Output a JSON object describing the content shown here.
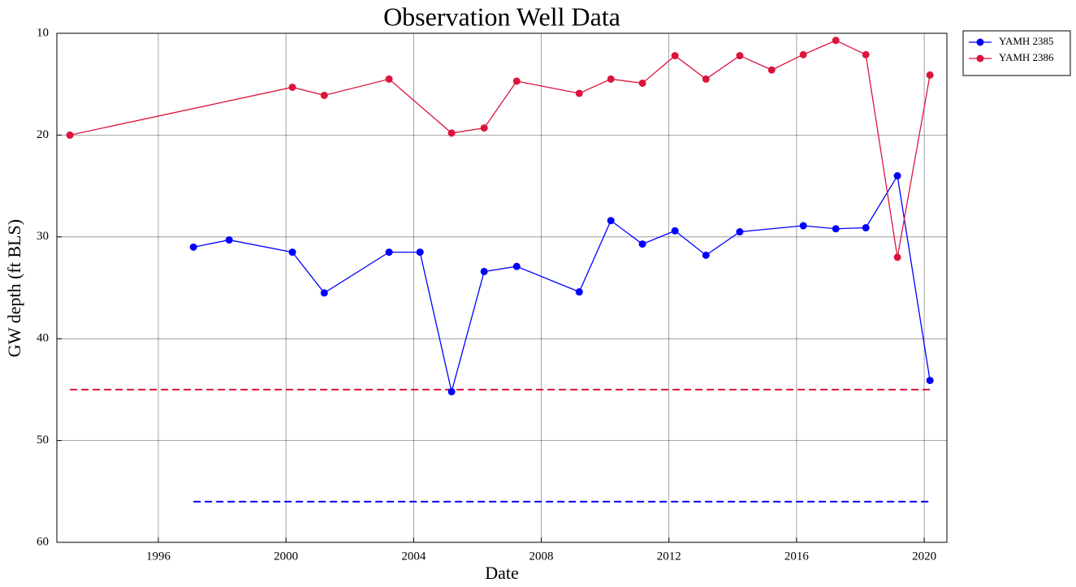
{
  "chart_data": {
    "type": "line",
    "title": "Observation Well Data",
    "x_label": "Date",
    "y_label": "GW depth (ft BLS)",
    "series": [
      {
        "name": "YAMH 2385",
        "color": "#0000ff",
        "x": [
          1997.1,
          1998.22,
          2000.2,
          2001.2,
          2003.23,
          2004.2,
          2005.19,
          2006.21,
          2007.23,
          2009.19,
          2010.18,
          2011.17,
          2012.19,
          2013.16,
          2014.22,
          2016.21,
          2017.23,
          2018.17,
          2019.16,
          2020.18
        ],
        "values": [
          31.0,
          30.3,
          31.5,
          35.5,
          31.5,
          31.5,
          45.2,
          33.4,
          32.9,
          35.4,
          28.4,
          30.7,
          29.4,
          31.8,
          29.5,
          28.9,
          29.2,
          29.1,
          24.0,
          44.1
        ]
      },
      {
        "name": "YAMH 2386",
        "color": "#dc143c",
        "x": [
          1993.23,
          2000.2,
          2001.2,
          2003.23,
          2005.19,
          2006.21,
          2007.23,
          2009.19,
          2010.18,
          2011.17,
          2012.19,
          2013.16,
          2014.22,
          2015.22,
          2016.21,
          2017.23,
          2018.17,
          2019.16,
          2020.18
        ],
        "values": [
          20.0,
          15.3,
          16.1,
          14.5,
          19.8,
          19.3,
          14.7,
          15.9,
          14.5,
          14.9,
          12.2,
          14.5,
          12.2,
          13.6,
          12.1,
          10.7,
          12.1,
          32.0,
          14.1
        ]
      }
    ],
    "reference_lines": [
      {
        "value": 45,
        "color": "#dc143c",
        "x": [
          1993.23,
          2020.18
        ]
      },
      {
        "value": 56,
        "color": "#0000ff",
        "x": [
          1997.1,
          2020.18
        ]
      }
    ],
    "xlim": [
      1992.82,
      2020.71
    ],
    "xticks": [
      1996,
      2000,
      2004,
      2008,
      2012,
      2016,
      2020
    ],
    "ylim": [
      60,
      10
    ],
    "yticks": [
      10,
      20,
      30,
      40,
      50,
      60
    ],
    "grid": true,
    "legend": "outside-upper-right"
  }
}
